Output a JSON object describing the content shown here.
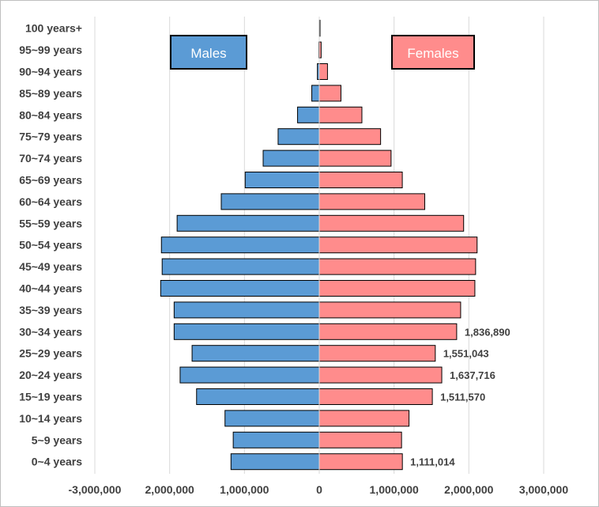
{
  "chart_data": {
    "type": "bar",
    "orientation": "horizontal",
    "layout": "population-pyramid",
    "categories": [
      "0~4 years",
      "5~9 years",
      "10~14 years",
      "15~19 years",
      "20~24 years",
      "25~29 years",
      "30~34 years",
      "35~39 years",
      "40~44 years",
      "45~49 years",
      "50~54 years",
      "55~59 years",
      "60~64 years",
      "65~69 years",
      "70~74 years",
      "75~79 years",
      "80~84 years",
      "85~89 years",
      "90~94 years",
      "95~99 years",
      "100 years+"
    ],
    "series": [
      {
        "name": "Males",
        "color": "#5b9bd5",
        "values": [
          -1180000,
          -1150000,
          -1260000,
          -1640000,
          -1860000,
          -1700000,
          -1940000,
          -1940000,
          -2120000,
          -2100000,
          -2110000,
          -1900000,
          -1310000,
          -990000,
          -750000,
          -550000,
          -290000,
          -100000,
          -25000,
          -5000,
          -1000
        ]
      },
      {
        "name": "Females",
        "color": "#ff8c8c",
        "values": [
          1111014,
          1100000,
          1200000,
          1511570,
          1637716,
          1551043,
          1836890,
          1890000,
          2080000,
          2090000,
          2110000,
          1930000,
          1410000,
          1110000,
          960000,
          820000,
          570000,
          290000,
          110000,
          25000,
          8000
        ]
      }
    ],
    "data_labels": [
      {
        "category": "30~34 years",
        "series": "Females",
        "text": "1,836,890"
      },
      {
        "category": "25~29 years",
        "series": "Females",
        "text": "1,551,043"
      },
      {
        "category": "20~24 years",
        "series": "Females",
        "text": "1,637,716"
      },
      {
        "category": "15~19 years",
        "series": "Females",
        "text": "1,511,570"
      },
      {
        "category": "0~4 years",
        "series": "Females",
        "text": "1,111,014"
      }
    ],
    "x_ticks": [
      -3000000,
      -2000000,
      -1000000,
      0,
      1000000,
      2000000,
      3000000
    ],
    "x_tick_labels": [
      "-3,000,000",
      "2,000,000",
      "1,000,000",
      "0",
      "1,000,000",
      "2,000,000",
      "3,000,000"
    ],
    "xlim": [
      -3000000,
      3000000
    ],
    "gridlines": "vertical",
    "legend": {
      "males_label": "Males",
      "females_label": "Females",
      "placement": "top"
    },
    "title": "",
    "xlabel": "",
    "ylabel": ""
  }
}
